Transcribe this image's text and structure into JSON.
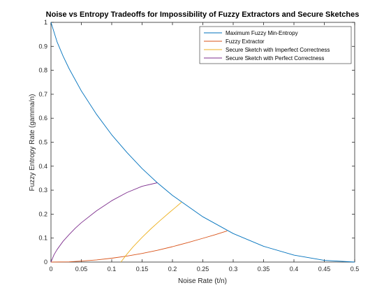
{
  "chart_data": {
    "type": "line",
    "title": "Noise vs Entropy Tradeoffs for Impossibility of Fuzzy Extractors and Secure Sketches",
    "xlabel": "Noise Rate (t/n)",
    "ylabel": "Fuzzy Entropy Rate (gamma/n)",
    "xlim": [
      0,
      0.5
    ],
    "ylim": [
      0,
      1
    ],
    "xticks": [
      "0",
      "0.05",
      "0.1",
      "0.15",
      "0.2",
      "0.25",
      "0.3",
      "0.35",
      "0.4",
      "0.45",
      "0.5"
    ],
    "yticks": [
      "0",
      "0.1",
      "0.2",
      "0.3",
      "0.4",
      "0.5",
      "0.6",
      "0.7",
      "0.8",
      "0.9",
      "1"
    ],
    "grid": false,
    "legend_position": "top-right",
    "series": [
      {
        "name": "Maximum Fuzzy Min-Entropy",
        "color": "#0072BD",
        "x": [
          0,
          0.01,
          0.02,
          0.03,
          0.05,
          0.075,
          0.1,
          0.125,
          0.15,
          0.175,
          0.2,
          0.25,
          0.3,
          0.35,
          0.4,
          0.45,
          0.5
        ],
        "y": [
          1,
          0.919,
          0.859,
          0.806,
          0.714,
          0.616,
          0.531,
          0.457,
          0.39,
          0.331,
          0.278,
          0.189,
          0.119,
          0.066,
          0.029,
          0.007,
          0
        ]
      },
      {
        "name": "Fuzzy Extractor",
        "color": "#D95319",
        "x": [
          0,
          0.03,
          0.05,
          0.075,
          0.1,
          0.125,
          0.15,
          0.175,
          0.2,
          0.225,
          0.25,
          0.27,
          0.29
        ],
        "y": [
          0,
          0.001,
          0.004,
          0.009,
          0.016,
          0.025,
          0.036,
          0.049,
          0.064,
          0.081,
          0.099,
          0.114,
          0.13
        ]
      },
      {
        "name": "Secure Sketch with Imperfect Correctness",
        "color": "#EDB120",
        "x": [
          0.115,
          0.125,
          0.135,
          0.15,
          0.165,
          0.18,
          0.195,
          0.205,
          0.215
        ],
        "y": [
          0,
          0.033,
          0.063,
          0.103,
          0.14,
          0.174,
          0.207,
          0.228,
          0.25
        ]
      },
      {
        "name": "Secure Sketch with Perfect Correctness",
        "color": "#7E2F8E",
        "x": [
          0,
          0.005,
          0.01,
          0.02,
          0.03,
          0.04,
          0.05,
          0.075,
          0.1,
          0.125,
          0.15,
          0.175
        ],
        "y": [
          0,
          0.03,
          0.052,
          0.087,
          0.115,
          0.141,
          0.164,
          0.214,
          0.256,
          0.29,
          0.316,
          0.331
        ]
      }
    ]
  }
}
